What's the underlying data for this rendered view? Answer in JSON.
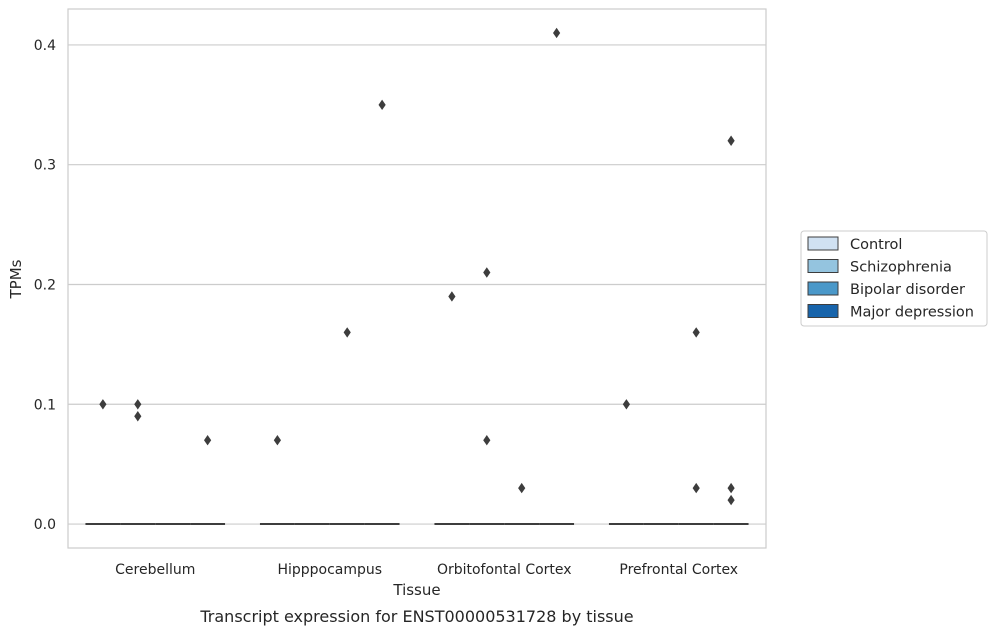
{
  "chart_data": {
    "type": "box",
    "caption": "Transcript expression for ENST00000531728 by tissue",
    "xlabel": "Tissue",
    "ylabel": "TPMs",
    "ylim": [
      -0.02,
      0.43
    ],
    "yticks": [
      0.0,
      0.1,
      0.2,
      0.3,
      0.4
    ],
    "ytick_labels": [
      "0.0",
      "0.1",
      "0.2",
      "0.3",
      "0.4"
    ],
    "grid": "horizontal",
    "legend_position": "right",
    "categories": [
      "Cerebellum",
      "Hipppocampus",
      "Orbitofontal Cortex",
      "Prefrontal Cortex"
    ],
    "series": [
      {
        "name": "Control",
        "color": "#d0e1f2",
        "median": [
          0,
          0,
          0,
          0
        ],
        "outliers": [
          [
            0.1
          ],
          [
            0.07
          ],
          [
            0.19
          ],
          [
            0.1
          ]
        ]
      },
      {
        "name": "Schizophrenia",
        "color": "#94c4df",
        "median": [
          0,
          0,
          0,
          0
        ],
        "outliers": [
          [
            0.1,
            0.09
          ],
          [],
          [
            0.21,
            0.07
          ],
          []
        ]
      },
      {
        "name": "Bipolar disorder",
        "color": "#4a98c9",
        "median": [
          0,
          0,
          0,
          0
        ],
        "outliers": [
          [],
          [
            0.16
          ],
          [
            0.03
          ],
          [
            0.16,
            0.03
          ]
        ]
      },
      {
        "name": "Major depression",
        "color": "#1764ab",
        "median": [
          0,
          0,
          0,
          0
        ],
        "outliers": [
          [
            0.07
          ],
          [
            0.35
          ],
          [
            0.41
          ],
          [
            0.32,
            0.03,
            0.02
          ]
        ]
      }
    ]
  }
}
